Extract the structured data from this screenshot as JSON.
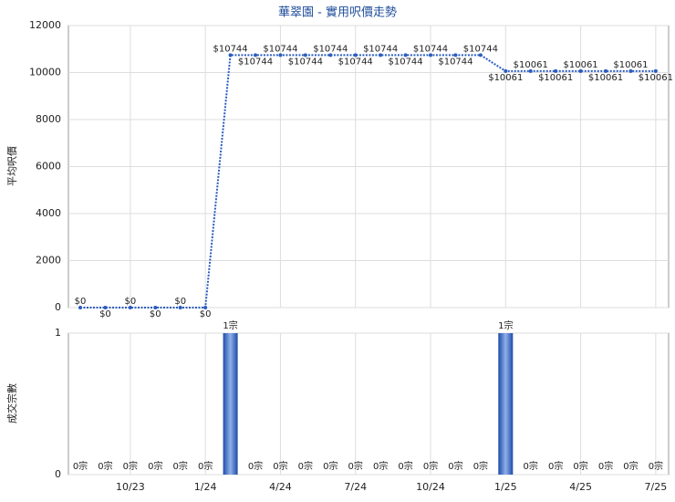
{
  "chart_data": [
    {
      "type": "line",
      "title": "華翠園 - 實用呎價走勢",
      "ylabel": "平均呎價",
      "color": "#2a5cbf",
      "values": [
        0,
        0,
        0,
        0,
        0,
        0,
        10744,
        10744,
        10744,
        10744,
        10744,
        10744,
        10744,
        10744,
        10744,
        10744,
        10744,
        10061,
        10061,
        10061,
        10061,
        10061,
        10061,
        10061
      ],
      "value_labels": [
        "$0",
        "$0",
        "$0",
        "$0",
        "$0",
        "$0",
        "$10744",
        "$10744",
        "$10744",
        "$10744",
        "$10744",
        "$10744",
        "$10744",
        "$10744",
        "$10744",
        "$10744",
        "$10744",
        "$10061",
        "$10061",
        "$10061",
        "$10061",
        "$10061",
        "$10061",
        "$10061"
      ],
      "ylim": [
        0,
        12000
      ],
      "yticks": [
        0,
        2000,
        4000,
        6000,
        8000,
        10000,
        12000
      ],
      "grid": true
    },
    {
      "type": "bar",
      "ylabel": "成交宗數",
      "color": "#3a68c8",
      "categories": [
        null,
        null,
        "10/23",
        null,
        null,
        "1/24",
        null,
        null,
        "4/24",
        null,
        null,
        "7/24",
        null,
        null,
        "10/24",
        null,
        null,
        "1/25",
        null,
        null,
        "4/25",
        null,
        null,
        "7/25"
      ],
      "values": [
        0,
        0,
        0,
        0,
        0,
        0,
        1,
        0,
        0,
        0,
        0,
        0,
        0,
        0,
        0,
        0,
        0,
        1,
        0,
        0,
        0,
        0,
        0,
        0
      ],
      "value_labels": [
        "0宗",
        "0宗",
        "0宗",
        "0宗",
        "0宗",
        "0宗",
        "1宗",
        "0宗",
        "0宗",
        "0宗",
        "0宗",
        "0宗",
        "0宗",
        "0宗",
        "0宗",
        "0宗",
        "0宗",
        "1宗",
        "0宗",
        "0宗",
        "0宗",
        "0宗",
        "0宗",
        "0宗"
      ],
      "ylim": [
        0,
        1
      ],
      "yticks": [
        0,
        1
      ],
      "grid": true
    }
  ]
}
